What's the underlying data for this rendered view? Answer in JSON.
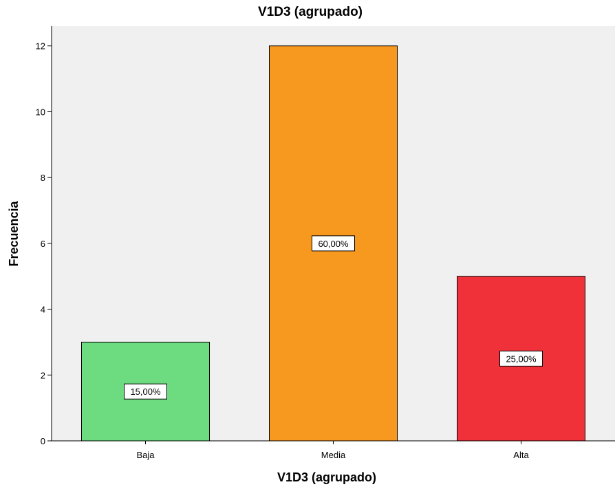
{
  "chart_data": {
    "type": "bar",
    "title": "V1D3 (agrupado)",
    "xlabel": "V1D3 (agrupado)",
    "ylabel": "Frecuencia",
    "categories": [
      "Baja",
      "Media",
      "Alta"
    ],
    "values": [
      3,
      12,
      5
    ],
    "data_labels": [
      "15,00%",
      "60,00%",
      "25,00%"
    ],
    "colors": [
      "#6ddb7f",
      "#f7991e",
      "#f0313a"
    ],
    "ylim": [
      0,
      12.6
    ],
    "yticks": [
      0,
      2,
      4,
      6,
      8,
      10,
      12
    ],
    "grid": false,
    "plot_background": "#f0f0f0"
  }
}
